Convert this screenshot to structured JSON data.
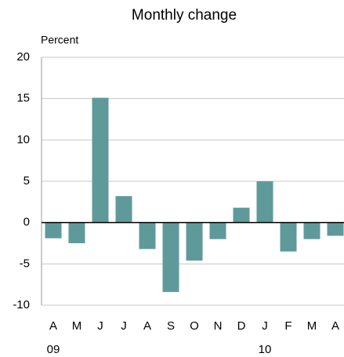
{
  "chart_data": {
    "type": "bar",
    "subtitle": "Monthly change",
    "y_label": "Percent",
    "categories": [
      "A",
      "M",
      "J",
      "J",
      "A",
      "S",
      "O",
      "N",
      "D",
      "J",
      "F",
      "M",
      "A"
    ],
    "year_labels": [
      "09",
      null,
      null,
      null,
      null,
      null,
      null,
      null,
      null,
      "10",
      null,
      null,
      null
    ],
    "values": [
      -1.9,
      -2.5,
      15.1,
      3.2,
      -3.2,
      -8.4,
      -4.6,
      -2.0,
      1.8,
      5.0,
      -3.5,
      -2.0,
      -1.6
    ],
    "color": "#5f9a9a",
    "ylim": [
      -10,
      20
    ],
    "yticks": [
      -10,
      -5,
      0,
      5,
      10,
      15,
      20
    ],
    "grid": true
  }
}
